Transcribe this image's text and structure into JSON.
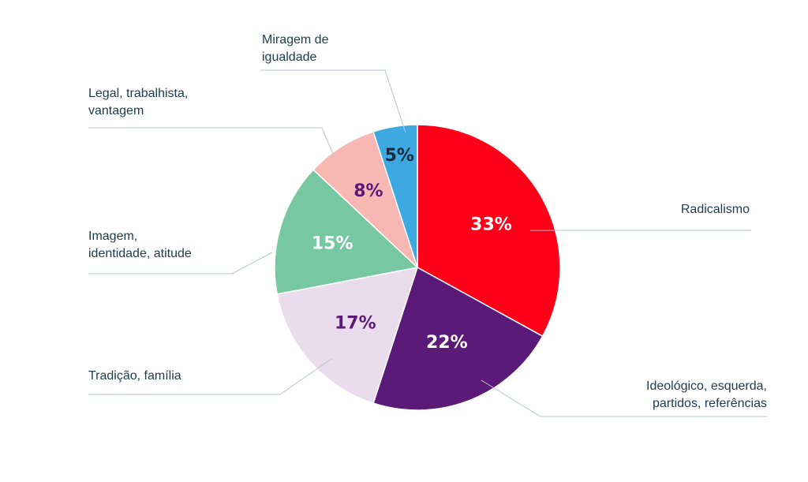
{
  "chart_data": {
    "type": "pie",
    "start_angle_deg": 0,
    "direction": "clockwise",
    "slices": [
      {
        "label_lines": [
          "Radicalismo"
        ],
        "value": 33,
        "display": "33%",
        "color": "#ff0019",
        "text_color": "#ffffff"
      },
      {
        "label_lines": [
          "Ideológico, esquerda,",
          "partidos, referências"
        ],
        "value": 22,
        "display": "22%",
        "color": "#5b1a78",
        "text_color": "#ffffff"
      },
      {
        "label_lines": [
          "Tradição, família"
        ],
        "value": 17,
        "display": "17%",
        "color": "#eadcec",
        "text_color": "#5b1a78"
      },
      {
        "label_lines": [
          "Imagem,",
          "identidade, atitude"
        ],
        "value": 15,
        "display": "15%",
        "color": "#77c8a0",
        "text_color": "#ffffff"
      },
      {
        "label_lines": [
          "Legal, trabalhista,",
          "vantagem"
        ],
        "value": 8,
        "display": "8%",
        "color": "#f7b7b2",
        "text_color": "#5b1a78"
      },
      {
        "label_lines": [
          "Miragem de",
          "igualdade"
        ],
        "value": 5,
        "display": "5%",
        "color": "#3ea8e0",
        "text_color": "#1a2a3a"
      }
    ]
  }
}
